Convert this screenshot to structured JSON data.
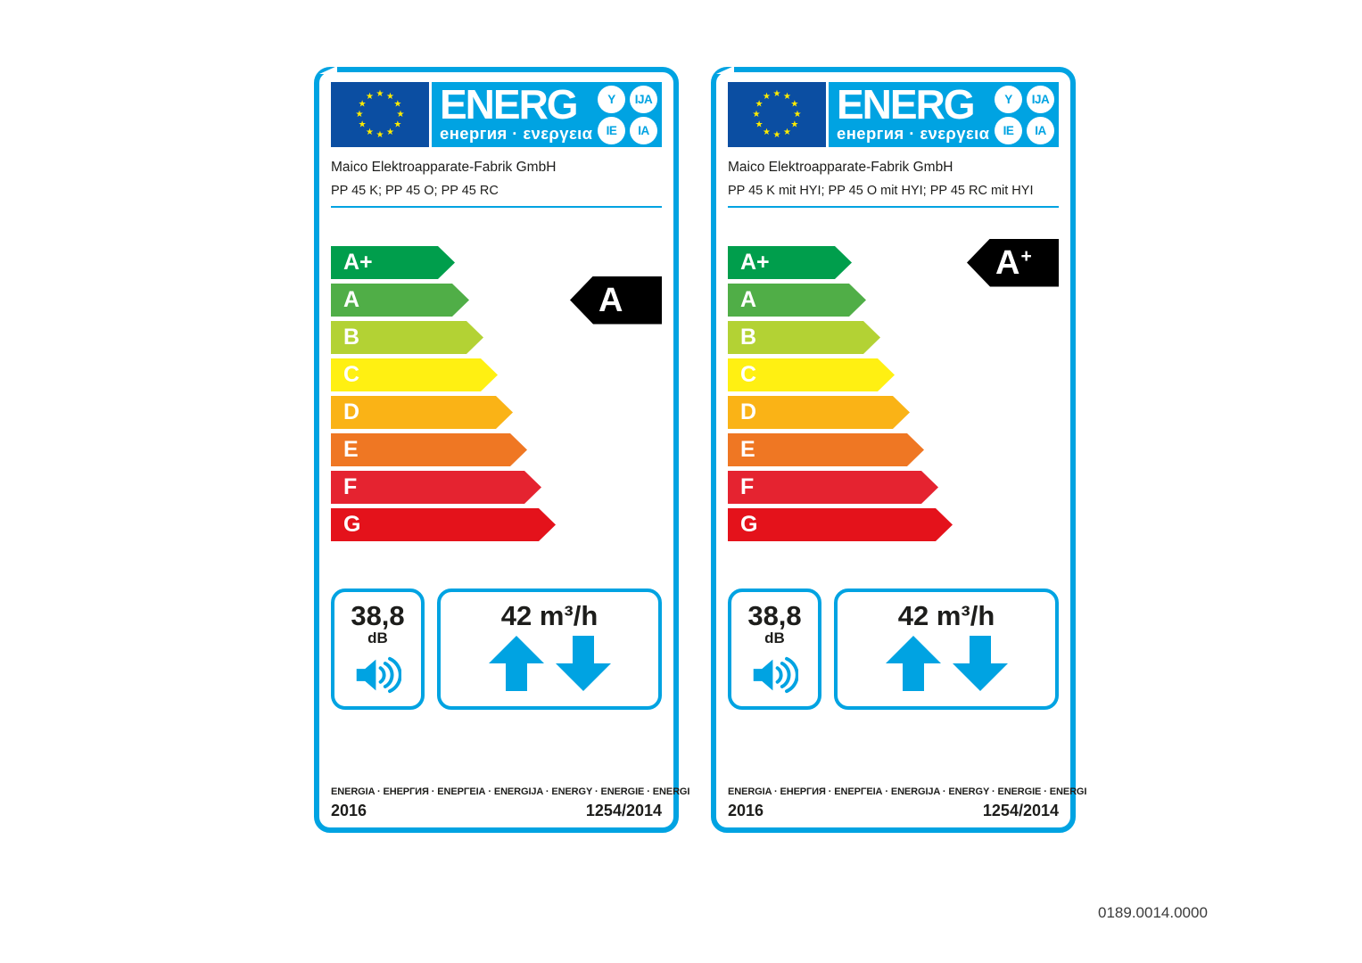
{
  "document_code": "0189.0014.0000",
  "shared": {
    "logo": {
      "brand": "ENERG",
      "subtitle": "енергия · ενεργεια",
      "suffix_bubbles": [
        "Y",
        "IJA",
        "IE",
        "IA"
      ]
    },
    "noise": {
      "value": "38,8",
      "unit": "dB"
    },
    "airflow": "42 m³/h",
    "class_scale": [
      {
        "label": "A+",
        "color": "#009E4C"
      },
      {
        "label": "A",
        "color": "#50AE47"
      },
      {
        "label": "B",
        "color": "#B3D234"
      },
      {
        "label": "C",
        "color": "#FFF012"
      },
      {
        "label": "D",
        "color": "#FAB316"
      },
      {
        "label": "E",
        "color": "#EF7723"
      },
      {
        "label": "F",
        "color": "#E52330"
      },
      {
        "label": "G",
        "color": "#E4121B"
      }
    ],
    "footer_languages": "ENERGIA · ЕНЕРГИЯ · ΕΝΕΡΓΕΙΑ · ENERGIJA · ENERGY · ENERGIE · ENERGI",
    "year": "2016",
    "regulation": "1254/2014",
    "colors": {
      "accent_cyan": "#00A3E2",
      "eu_blue": "#0B4EA2",
      "star_yellow": "#FFEC00",
      "indicator_black": "#000000",
      "text_ink": "#1D1D1B"
    }
  },
  "labels": [
    {
      "manufacturer": "Maico Elektroapparate-Fabrik GmbH",
      "model": "PP 45 K; PP 45 O; PP 45 RC",
      "rating": {
        "letter": "A",
        "plus": "",
        "row_index": 1
      }
    },
    {
      "manufacturer": "Maico Elektroapparate-Fabrik GmbH",
      "model": "PP 45 K mit HYI; PP 45 O mit HYI; PP 45 RC mit HYI",
      "rating": {
        "letter": "A",
        "plus": "+",
        "row_index": 0
      }
    }
  ]
}
